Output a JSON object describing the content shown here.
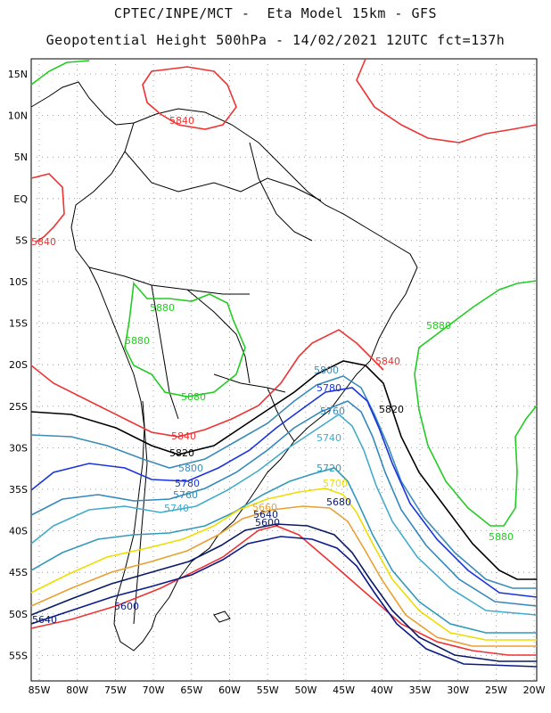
{
  "header": {
    "line1": "CPTEC/INPE/MCT -  Eta Model 15km - GFS",
    "line2": "Geopotential Height 500hPa - 14/02/2021 12UTC fct=137h"
  },
  "axes": {
    "lat_labels": [
      "15N",
      "10N",
      "5N",
      "EQ",
      "5S",
      "10S",
      "15S",
      "20S",
      "25S",
      "30S",
      "35S",
      "40S",
      "45S",
      "50S",
      "55S"
    ],
    "lon_labels": [
      "85W",
      "80W",
      "75W",
      "70W",
      "65W",
      "60W",
      "55W",
      "50W",
      "45W",
      "40W",
      "35W",
      "30W",
      "25W",
      "20W"
    ],
    "grid": "dotted"
  },
  "contours": [
    {
      "value": "5880",
      "color": "#22cc22"
    },
    {
      "value": "5840",
      "color": "#ee3333"
    },
    {
      "value": "5820",
      "color": "#000000"
    },
    {
      "value": "5800",
      "color": "#3a8cb8"
    },
    {
      "value": "5780",
      "color": "#1a33dd"
    },
    {
      "value": "5760",
      "color": "#3388bb"
    },
    {
      "value": "5740",
      "color": "#44aacc"
    },
    {
      "value": "5720",
      "color": "#3399bb"
    },
    {
      "value": "5700",
      "color": "#eedd00"
    },
    {
      "value": "5680",
      "color": "#e8a033"
    },
    {
      "value": "5640",
      "color": "#0a1a66"
    },
    {
      "value": "5600",
      "color": "#0a1a88"
    }
  ],
  "contour_labels": [
    {
      "text": "5840",
      "color": "#ee3333"
    },
    {
      "text": "5840",
      "color": "#ee3333"
    },
    {
      "text": "5880",
      "color": "#22cc22"
    },
    {
      "text": "5880",
      "color": "#22cc22"
    },
    {
      "text": "5880",
      "color": "#22cc22"
    },
    {
      "text": "5880",
      "color": "#22cc22"
    },
    {
      "text": "5880",
      "color": "#22cc22"
    },
    {
      "text": "5840",
      "color": "#ee3333"
    },
    {
      "text": "5840",
      "color": "#ee3333"
    },
    {
      "text": "5820",
      "color": "#000000"
    },
    {
      "text": "5820",
      "color": "#000000"
    },
    {
      "text": "5800",
      "color": "#3a8cb8"
    },
    {
      "text": "5800",
      "color": "#3a8cb8"
    },
    {
      "text": "5780",
      "color": "#1a33dd"
    },
    {
      "text": "5780",
      "color": "#1a33dd"
    },
    {
      "text": "5760",
      "color": "#3388bb"
    },
    {
      "text": "5760",
      "color": "#3388bb"
    },
    {
      "text": "5740",
      "color": "#44aacc"
    },
    {
      "text": "5740",
      "color": "#44aacc"
    },
    {
      "text": "5720",
      "color": "#3399bb"
    },
    {
      "text": "5700",
      "color": "#eedd00"
    },
    {
      "text": "5680",
      "color": "#0a1a66"
    },
    {
      "text": "5660",
      "color": "#e8a033"
    },
    {
      "text": "5640",
      "color": "#0a1a66"
    },
    {
      "text": "5600",
      "color": "#0a1a66"
    },
    {
      "text": "5640",
      "color": "#0a1a66"
    },
    {
      "text": "5600",
      "color": "#0a1a88"
    }
  ]
}
